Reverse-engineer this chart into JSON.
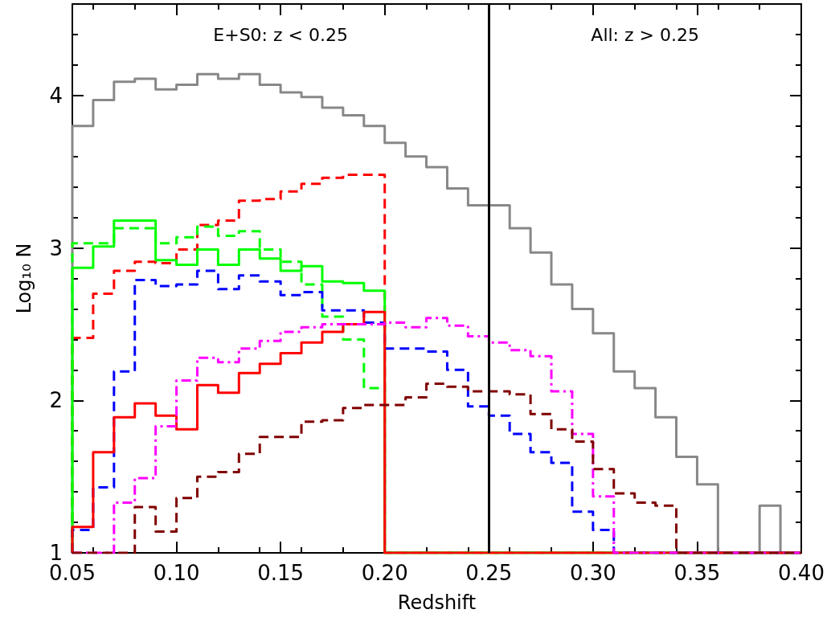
{
  "chart_data": {
    "type": "histogram",
    "xlabel": "Redshift",
    "ylabel": "Log₁₀ N",
    "bins": [
      0.05,
      0.06,
      0.07,
      0.08,
      0.09,
      0.1,
      0.11,
      0.12,
      0.13,
      0.14,
      0.15,
      0.16,
      0.17,
      0.18,
      0.19,
      0.2,
      0.21,
      0.22,
      0.23,
      0.24,
      0.25,
      0.26,
      0.27,
      0.28,
      0.29,
      0.3,
      0.31,
      0.32,
      0.33,
      0.34,
      0.35,
      0.36,
      0.37,
      0.38,
      0.39,
      0.4
    ],
    "series": [
      {
        "color": "#888888",
        "line_style": "solid",
        "values": [
          3.8,
          3.97,
          4.09,
          4.11,
          4.04,
          4.07,
          4.14,
          4.11,
          4.14,
          4.07,
          4.02,
          3.99,
          3.92,
          3.87,
          3.8,
          3.69,
          3.6,
          3.53,
          3.39,
          3.28,
          3.28,
          3.13,
          2.97,
          2.76,
          2.6,
          2.44,
          2.19,
          2.08,
          1.89,
          1.63,
          1.45,
          null,
          null,
          1.31,
          null
        ]
      },
      {
        "color": "#fe0000",
        "line_style": "dashed",
        "values": [
          2.41,
          2.7,
          2.85,
          2.91,
          2.9,
          2.99,
          3.15,
          3.18,
          3.31,
          3.32,
          3.37,
          3.42,
          3.46,
          3.48,
          3.48,
          null,
          null,
          null,
          null,
          null,
          null,
          null,
          null,
          null,
          null,
          null,
          null,
          null,
          null,
          null,
          null,
          null,
          null,
          null,
          null
        ]
      },
      {
        "color": "#00fe00",
        "line_style": "dashed",
        "values": [
          3.03,
          3.03,
          3.13,
          3.13,
          3.03,
          3.07,
          3.14,
          3.08,
          3.11,
          2.99,
          2.91,
          2.76,
          2.55,
          2.4,
          2.08,
          null,
          null,
          null,
          null,
          null,
          null,
          null,
          null,
          null,
          null,
          null,
          null,
          null,
          null,
          null,
          null,
          null,
          null,
          null,
          null
        ]
      },
      {
        "color": "#00ff00",
        "line_style": "solid",
        "values": [
          2.87,
          3.01,
          3.18,
          3.18,
          2.92,
          2.89,
          2.99,
          2.89,
          2.99,
          2.93,
          2.85,
          2.88,
          2.78,
          2.77,
          2.72,
          null,
          null,
          null,
          null,
          null,
          null,
          null,
          null,
          null,
          null,
          null,
          null,
          null,
          null,
          null,
          null,
          null,
          null,
          null,
          null
        ]
      },
      {
        "color": "#0000ff",
        "line_style": "dashed",
        "values": [
          1.15,
          1.43,
          2.19,
          2.79,
          2.75,
          2.76,
          2.85,
          2.73,
          2.82,
          2.78,
          2.69,
          2.71,
          2.59,
          2.59,
          2.51,
          2.34,
          2.34,
          2.32,
          2.2,
          1.96,
          1.9,
          1.78,
          1.66,
          1.59,
          1.27,
          1.15,
          null,
          null,
          null,
          null,
          null,
          null,
          null,
          null,
          null
        ]
      },
      {
        "color": "#ff0000",
        "line_style": "solid",
        "values": [
          1.17,
          1.66,
          1.89,
          1.98,
          1.9,
          1.81,
          2.1,
          2.05,
          2.18,
          2.24,
          2.31,
          2.38,
          2.45,
          2.5,
          2.58,
          null,
          null,
          null,
          null,
          null,
          null,
          null,
          null,
          null,
          null,
          null,
          null,
          null,
          null,
          null,
          null,
          null,
          null,
          null,
          null
        ]
      },
      {
        "color": "#ff00ff",
        "line_style": "dashdot",
        "values": [
          null,
          null,
          1.33,
          1.49,
          1.83,
          2.13,
          2.28,
          2.25,
          2.34,
          2.39,
          2.45,
          2.48,
          2.5,
          2.5,
          2.5,
          2.51,
          2.48,
          2.54,
          2.49,
          2.42,
          2.38,
          2.33,
          2.29,
          2.06,
          1.78,
          1.37,
          null,
          null,
          null,
          null,
          null,
          null,
          null,
          null,
          null
        ]
      },
      {
        "color": "#800000",
        "line_style": "dashed",
        "values": [
          null,
          null,
          null,
          1.3,
          1.14,
          1.36,
          1.5,
          1.53,
          1.65,
          1.76,
          1.76,
          1.86,
          1.87,
          1.95,
          1.97,
          1.97,
          2.02,
          2.11,
          2.09,
          2.06,
          2.06,
          2.04,
          1.91,
          1.81,
          1.73,
          1.55,
          1.39,
          1.33,
          1.31,
          null,
          null,
          null,
          null,
          null,
          null
        ]
      }
    ],
    "xlim": [
      0.05,
      0.4
    ],
    "xticks": [
      {
        "value": 0.05,
        "label": "0.05"
      },
      {
        "value": 0.1,
        "label": "0.10"
      },
      {
        "value": 0.15,
        "label": "0.15"
      },
      {
        "value": 0.2,
        "label": "0.20"
      },
      {
        "value": 0.25,
        "label": "0.25"
      },
      {
        "value": 0.3,
        "label": "0.30"
      },
      {
        "value": 0.35,
        "label": "0.35"
      },
      {
        "value": 0.4,
        "label": "0.40"
      }
    ],
    "ylim": [
      1,
      4.6
    ],
    "yticks": [
      1,
      2,
      3,
      4
    ],
    "ref_lines": [
      {
        "axis": "x",
        "value": 0.25,
        "color": "#000000",
        "line_style": "solid"
      }
    ],
    "annotations": [
      "E+S0: z < 0.25",
      "All: z > 0.25"
    ],
    "grid": false
  }
}
